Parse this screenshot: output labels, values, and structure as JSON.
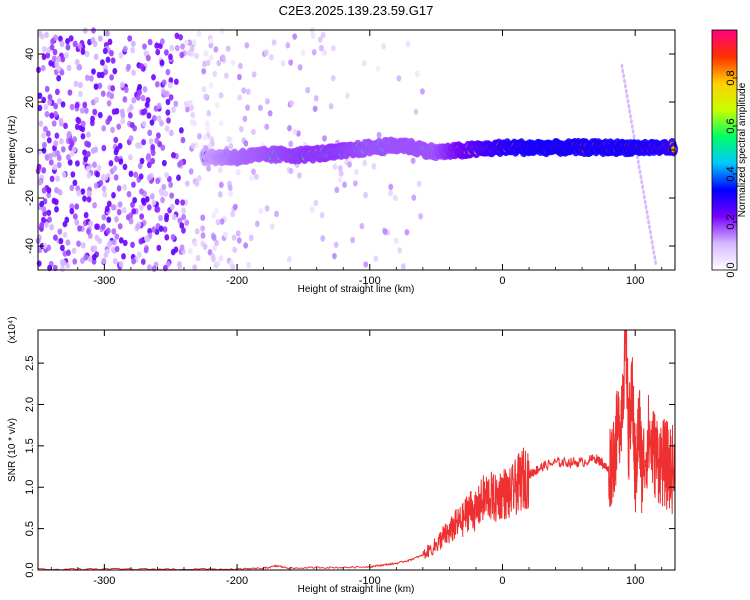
{
  "title": "C2E3.2025.139.23.59.G17",
  "chart_data": [
    {
      "type": "heatmap",
      "name": "spectrogram",
      "xlabel": "Height of straight line (km)",
      "ylabel": "Frequency (Hz)",
      "xlim": [
        -350,
        130
      ],
      "ylim": [
        -50,
        50
      ],
      "x_ticks": [
        -300,
        -200,
        -100,
        0,
        100
      ],
      "y_ticks": [
        -40,
        -20,
        0,
        20,
        40
      ],
      "colorbar": {
        "label": "Normalized spectral amplitude",
        "range": [
          0,
          1
        ],
        "ticks": [
          "0.0",
          "0.2",
          "0.4",
          "0.6",
          "0.8"
        ],
        "colors": [
          "#ffffff",
          "#d6b8ff",
          "#7a00ff",
          "#0000ff",
          "#00c8ff",
          "#00ff64",
          "#c8ff00",
          "#ffd000",
          "#ff3000",
          "#ff0080"
        ]
      },
      "signal_track": [
        {
          "x": -225,
          "freq": -3,
          "amp": 0.35
        },
        {
          "x": -200,
          "freq": -3,
          "amp": 0.45
        },
        {
          "x": -175,
          "freq": -2,
          "amp": 0.5
        },
        {
          "x": -150,
          "freq": -2,
          "amp": 0.55
        },
        {
          "x": -125,
          "freq": -1,
          "amp": 0.55
        },
        {
          "x": -100,
          "freq": 1,
          "amp": 0.5
        },
        {
          "x": -75,
          "freq": 2,
          "amp": 0.5
        },
        {
          "x": -50,
          "freq": -1,
          "amp": 0.5
        },
        {
          "x": -25,
          "freq": 0,
          "amp": 0.7
        },
        {
          "x": 0,
          "freq": 1,
          "amp": 0.85
        },
        {
          "x": 25,
          "freq": 1,
          "amp": 0.9
        },
        {
          "x": 50,
          "freq": 1,
          "amp": 0.9
        },
        {
          "x": 75,
          "freq": 1,
          "amp": 0.9
        },
        {
          "x": 100,
          "freq": 1,
          "amp": 0.9
        },
        {
          "x": 130,
          "freq": 1,
          "amp": 0.85
        }
      ]
    },
    {
      "type": "line",
      "name": "snr",
      "xlabel": "Height of straight line (km)",
      "ylabel": "SNR (10 * v/v)",
      "multiplier": "(x10⁴)",
      "xlim": [
        -350,
        130
      ],
      "ylim": [
        0,
        2.9
      ],
      "x_ticks": [
        -300,
        -200,
        -100,
        0,
        100
      ],
      "y_ticks": [
        "0.0",
        "0.5",
        "1.0",
        "1.5",
        "2.0",
        "2.5"
      ],
      "color": "#ee3030",
      "series": [
        {
          "x": [
            -350,
            -300,
            -250,
            -200,
            -180,
            -170,
            -160,
            -140,
            -120,
            -100,
            -90,
            -80,
            -70,
            -60,
            -50,
            -45,
            -40,
            -35,
            -30,
            -25,
            -20,
            -15,
            -10,
            -5,
            0,
            5,
            10,
            15,
            20,
            25,
            30,
            40,
            50,
            60,
            70,
            75,
            80,
            85,
            90,
            93,
            95,
            98,
            100,
            103,
            105,
            110,
            115,
            120,
            125,
            130
          ],
          "y": [
            0.01,
            0.01,
            0.01,
            0.01,
            0.02,
            0.05,
            0.02,
            0.03,
            0.03,
            0.04,
            0.06,
            0.08,
            0.12,
            0.18,
            0.3,
            0.4,
            0.45,
            0.55,
            0.6,
            0.75,
            0.7,
            0.85,
            0.9,
            0.85,
            0.95,
            0.9,
            1.0,
            1.1,
            1.15,
            1.2,
            1.25,
            1.3,
            1.3,
            1.3,
            1.35,
            1.3,
            1.2,
            1.5,
            2.0,
            2.85,
            1.6,
            2.1,
            1.1,
            1.8,
            1.2,
            1.6,
            1.4,
            1.3,
            1.25,
            1.2
          ]
        }
      ]
    }
  ]
}
